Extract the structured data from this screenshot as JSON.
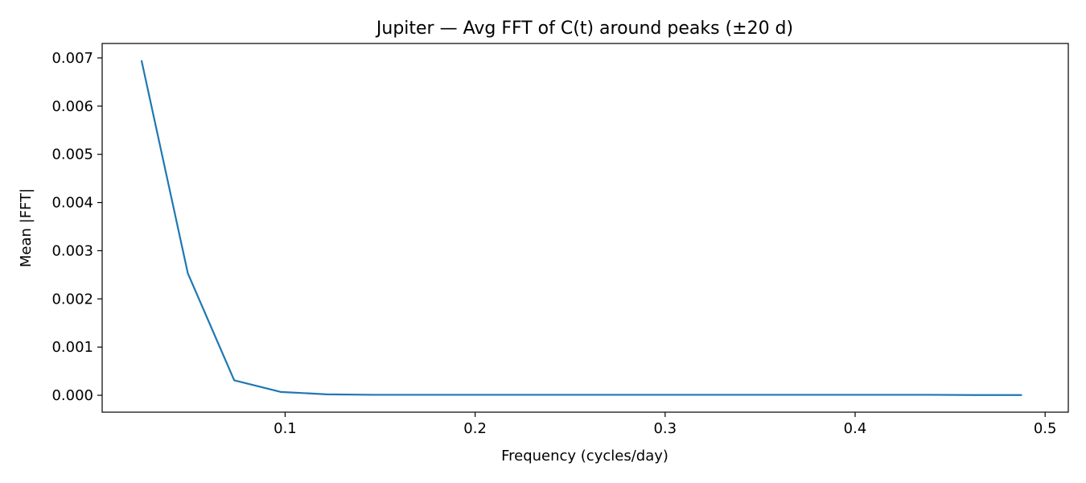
{
  "chart_data": {
    "type": "line",
    "title": "Jupiter — Avg FFT of C(t) around peaks (±20 d)",
    "xlabel": "Frequency (cycles/day)",
    "ylabel": "Mean |FFT|",
    "xlim": [
      0.0037,
      0.5122
    ],
    "ylim": [
      -0.00035,
      0.0073
    ],
    "x_ticks": [
      0.1,
      0.2,
      0.3,
      0.4,
      0.5
    ],
    "x_tick_labels": [
      "0.1",
      "0.2",
      "0.3",
      "0.4",
      "0.5"
    ],
    "y_ticks": [
      0.0,
      0.001,
      0.002,
      0.003,
      0.004,
      0.005,
      0.006,
      0.007
    ],
    "y_tick_labels": [
      "0.000",
      "0.001",
      "0.002",
      "0.003",
      "0.004",
      "0.005",
      "0.006",
      "0.007"
    ],
    "grid": false,
    "legend": false,
    "color": "#1f77b4",
    "series": [
      {
        "x": [
          0.0244,
          0.0488,
          0.0732,
          0.0976,
          0.122,
          0.1463,
          0.1707,
          0.1951,
          0.2195,
          0.2439,
          0.2683,
          0.2927,
          0.3171,
          0.3415,
          0.3659,
          0.3902,
          0.4146,
          0.439,
          0.4634,
          0.4878
        ],
        "values": [
          0.00695,
          0.00253,
          0.00031,
          7e-05,
          2e-05,
          1e-05,
          1e-05,
          1e-05,
          1e-05,
          1e-05,
          1e-05,
          1e-05,
          1e-05,
          1e-05,
          1e-05,
          1e-05,
          1e-05,
          1e-05,
          5e-06,
          5e-06
        ]
      }
    ]
  }
}
